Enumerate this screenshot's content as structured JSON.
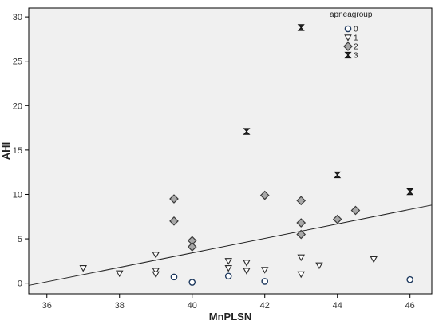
{
  "chart_data": {
    "type": "scatter",
    "title": "",
    "xlabel": "MnPLSN",
    "ylabel": "AHI",
    "xlim": [
      35.5,
      46.6
    ],
    "ylim": [
      -1.2,
      31.0
    ],
    "x_ticks": [
      36,
      38,
      40,
      42,
      44,
      46
    ],
    "y_ticks": [
      0,
      5,
      10,
      15,
      20,
      25,
      30
    ],
    "grid": false,
    "legend_title": "apneagroup",
    "legend_position": "top-right",
    "plot_background": "#f0f0f0",
    "series": [
      {
        "name": "0",
        "marker": "circle",
        "color": "#1f3a5f",
        "points": [
          [
            39.5,
            0.7
          ],
          [
            40.0,
            0.1
          ],
          [
            41.0,
            0.8
          ],
          [
            42.0,
            0.2
          ],
          [
            46.0,
            0.4
          ]
        ]
      },
      {
        "name": "1",
        "marker": "triangle-down",
        "color": "#2a2a2a",
        "points": [
          [
            37.0,
            1.7
          ],
          [
            38.0,
            1.1
          ],
          [
            39.0,
            3.2
          ],
          [
            39.0,
            1.4
          ],
          [
            39.0,
            1.0
          ],
          [
            41.0,
            2.5
          ],
          [
            41.0,
            1.7
          ],
          [
            41.5,
            2.3
          ],
          [
            41.5,
            1.4
          ],
          [
            42.0,
            1.5
          ],
          [
            43.0,
            2.9
          ],
          [
            43.0,
            1.0
          ],
          [
            43.5,
            2.0
          ],
          [
            45.0,
            2.7
          ]
        ]
      },
      {
        "name": "2",
        "marker": "diamond",
        "color": "#8a8a8a",
        "points": [
          [
            39.5,
            9.5
          ],
          [
            39.5,
            7.0
          ],
          [
            40.0,
            4.8
          ],
          [
            40.0,
            4.1
          ],
          [
            42.0,
            9.9
          ],
          [
            43.0,
            9.3
          ],
          [
            43.0,
            6.8
          ],
          [
            43.0,
            5.5
          ],
          [
            44.0,
            7.2
          ],
          [
            44.5,
            8.2
          ]
        ]
      },
      {
        "name": "3",
        "marker": "hourglass",
        "color": "#1a1a1a",
        "points": [
          [
            41.5,
            17.1
          ],
          [
            43.0,
            28.8
          ],
          [
            44.0,
            12.2
          ],
          [
            46.0,
            10.3
          ]
        ]
      }
    ],
    "fit_line": {
      "x": [
        35.5,
        46.6
      ],
      "y": [
        -0.25,
        8.8
      ]
    },
    "legend": [
      {
        "label": "0",
        "marker": "circle"
      },
      {
        "label": "1",
        "marker": "triangle-down"
      },
      {
        "label": "2",
        "marker": "diamond"
      },
      {
        "label": "3",
        "marker": "hourglass"
      }
    ]
  }
}
